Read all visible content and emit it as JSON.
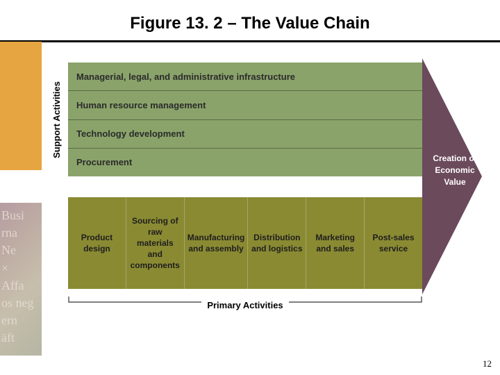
{
  "title": "Figure 13. 2 – The Value Chain",
  "title_fontsize": 24,
  "title_color": "#000000",
  "underline_color": "#000000",
  "page_number": "12",
  "deco": {
    "orange": "#e6a540",
    "orange_top": 60,
    "orange_height": 185
  },
  "diagram": {
    "support_axis_label": "Support Activities",
    "primary_axis_label": "Primary Activities",
    "creation_label": "Creation of Economic Value",
    "support_bg": "#8aa36a",
    "support_text_color": "#2b2b2b",
    "support_rows": [
      "Managerial, legal, and administrative infrastructure",
      "Human resource management",
      "Technology development",
      "Procurement"
    ],
    "primary_bg": "#8a8a33",
    "primary_text_color": "#1e1e1e",
    "primary_cols": [
      "Product design",
      "Sourcing of raw materials and components",
      "Manufacturing and assembly",
      "Distribution and logistics",
      "Marketing and sales",
      "Post-sales service"
    ],
    "arrow_color": "#6b4a5c",
    "axis_label_fontsize": 13,
    "cell_fontsize": 12,
    "bracket_color": "#333333"
  }
}
